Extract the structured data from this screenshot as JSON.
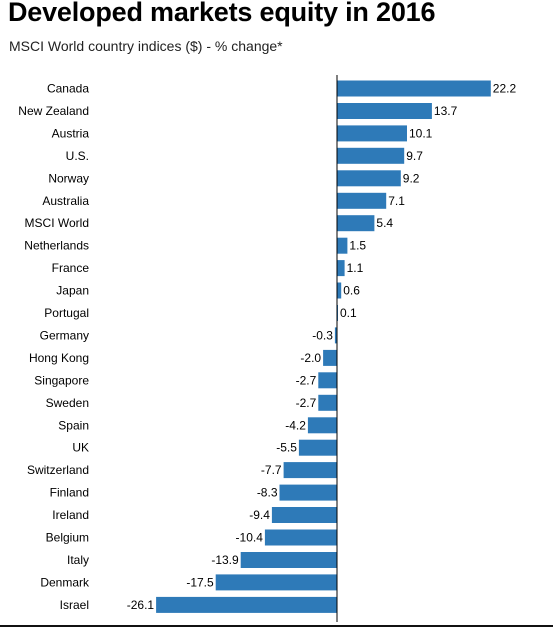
{
  "title": "Developed markets equity in 2016",
  "subtitle": "MSCI World country indices ($) - % change*",
  "chart_data": {
    "type": "bar",
    "orientation": "horizontal",
    "title": "Developed markets equity in 2016",
    "subtitle": "MSCI World country indices ($) - % change*",
    "categories": [
      "Canada",
      "New Zealand",
      "Austria",
      "U.S.",
      "Norway",
      "Australia",
      "MSCI World",
      "Netherlands",
      "France",
      "Japan",
      "Portugal",
      "Germany",
      "Hong Kong",
      "Singapore",
      "Sweden",
      "Spain",
      "UK",
      "Switzerland",
      "Finland",
      "Ireland",
      "Belgium",
      "Italy",
      "Denmark",
      "Israel"
    ],
    "values": [
      22.2,
      13.7,
      10.1,
      9.7,
      9.2,
      7.1,
      5.4,
      1.5,
      1.1,
      0.6,
      0.1,
      -0.3,
      -2.0,
      -2.7,
      -2.7,
      -4.2,
      -5.5,
      -7.7,
      -8.3,
      -9.4,
      -10.4,
      -13.9,
      -17.5,
      -26.1
    ],
    "value_labels": [
      "22.2",
      "13.7",
      "10.1",
      "9.7",
      "9.2",
      "7.1",
      "5.4",
      "1.5",
      "1.1",
      "0.6",
      "0.1",
      "-0.3",
      "-2.0",
      "-2.7",
      "-2.7",
      "-4.2",
      "-5.5",
      "-7.7",
      "-8.3",
      "-9.4",
      "-10.4",
      "-13.9",
      "-17.5",
      "-26.1"
    ],
    "bar_color": "#2e7ab8",
    "grid": false,
    "legend": "none"
  }
}
